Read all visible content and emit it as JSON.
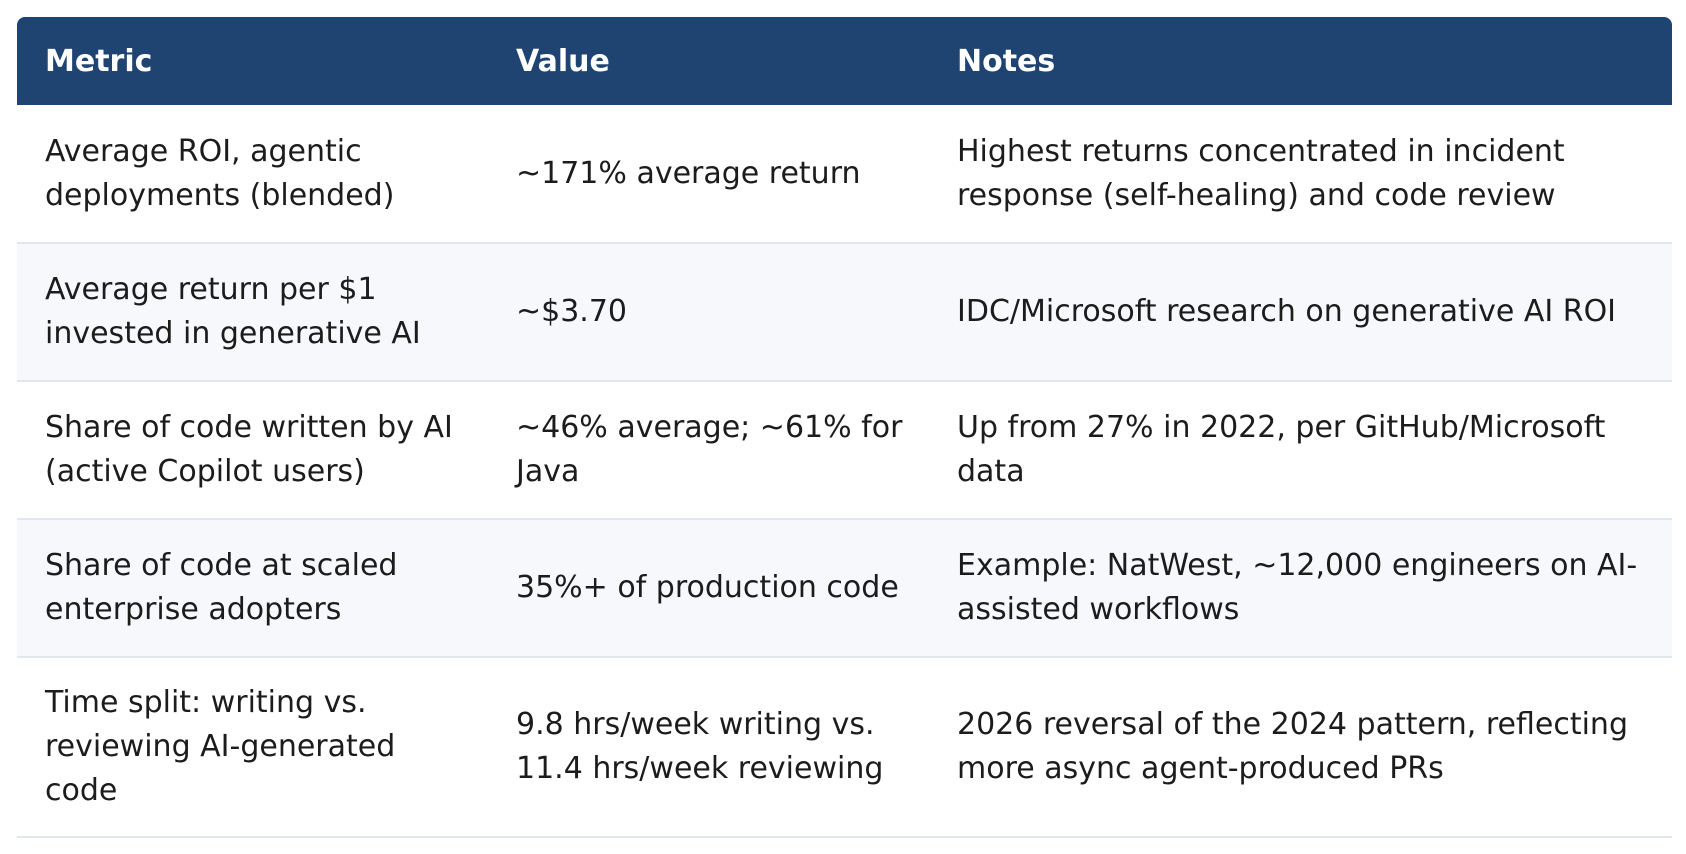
{
  "table": {
    "headers": [
      "Metric",
      "Value",
      "Notes"
    ],
    "rows": [
      {
        "metric": "Average ROI, agentic deployments (blended)",
        "value": "~171% average return",
        "notes": "Highest returns concentrated in incident response (self-healing) and code review"
      },
      {
        "metric": "Average return per $1 invested in generative AI",
        "value": "~$3.70",
        "notes": "IDC/Microsoft research on generative AI ROI"
      },
      {
        "metric": "Share of code written by AI (active Copilot users)",
        "value": "~46% average; ~61% for Java",
        "notes": "Up from 27% in 2022, per GitHub/Microsoft data"
      },
      {
        "metric": "Share of code at scaled enterprise adopters",
        "value": "35%+ of production code",
        "notes": "Example: NatWest, ~12,000 engineers on AI-assisted workflows"
      },
      {
        "metric": "Time split: writing vs. reviewing AI-generated code",
        "value": "9.8 hrs/week writing vs. 11.4 hrs/week reviewing",
        "notes": "2026 reversal of the 2024 pattern, reflecting more async agent-produced PRs"
      }
    ]
  }
}
